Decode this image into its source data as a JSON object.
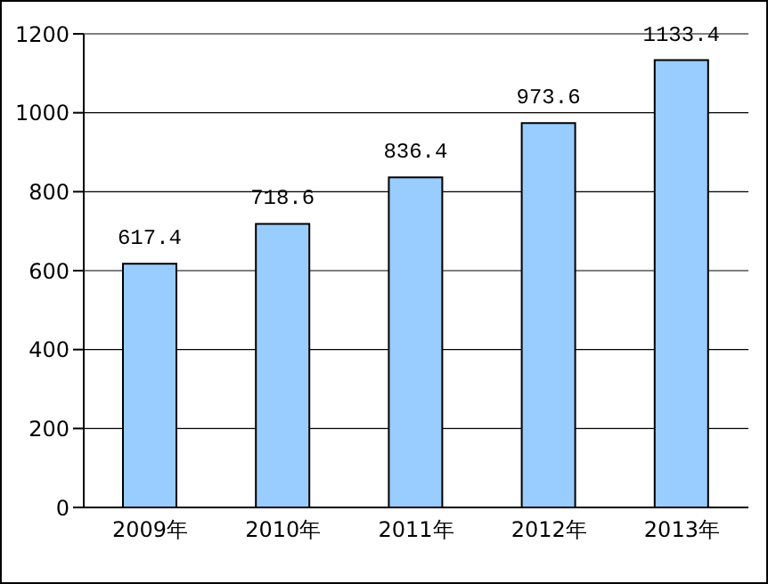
{
  "chart_data": {
    "type": "bar",
    "categories": [
      "2009年",
      "2010年",
      "2011年",
      "2012年",
      "2013年"
    ],
    "values": [
      617.4,
      718.6,
      836.4,
      973.6,
      1133.4
    ],
    "color": "#99ccff",
    "ylim": [
      0,
      1200
    ],
    "yticks": [
      0,
      200,
      400,
      600,
      800,
      1000,
      1200
    ],
    "grid": "y",
    "data_labels": true
  }
}
